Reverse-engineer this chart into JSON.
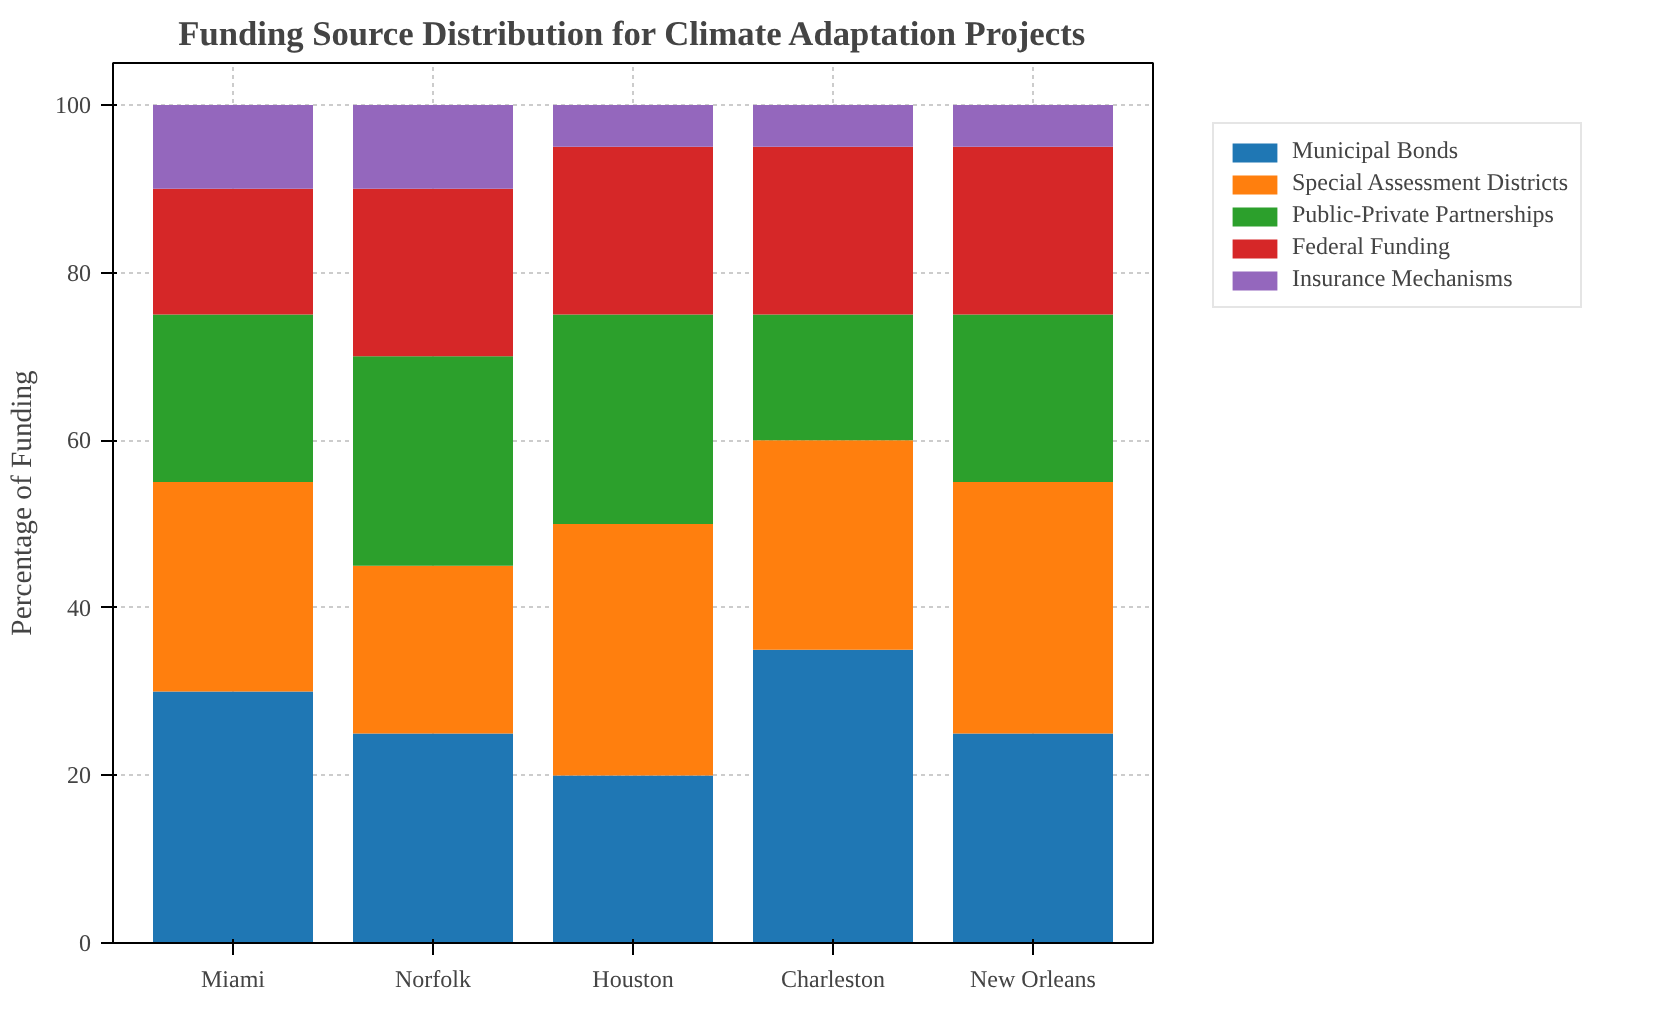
{
  "chart_data": {
    "type": "bar",
    "stacked": true,
    "title": "Funding Source Distribution for Climate Adaptation Projects",
    "ylabel": "Percentage of Funding",
    "categories": [
      "Miami",
      "Norfolk",
      "Houston",
      "Charleston",
      "New Orleans"
    ],
    "series": [
      {
        "name": "Municipal Bonds",
        "color": "#1f77b4",
        "values": [
          30,
          25,
          20,
          35,
          25
        ]
      },
      {
        "name": "Special Assessment Districts",
        "color": "#ff7f0e",
        "values": [
          25,
          20,
          30,
          25,
          30
        ]
      },
      {
        "name": "Public-Private Partnerships",
        "color": "#2ca02c",
        "values": [
          20,
          25,
          25,
          15,
          20
        ]
      },
      {
        "name": "Federal Funding",
        "color": "#d62728",
        "values": [
          15,
          20,
          20,
          20,
          20
        ]
      },
      {
        "name": "Insurance Mechanisms",
        "color": "#9467bd",
        "values": [
          10,
          10,
          5,
          5,
          5
        ]
      }
    ],
    "ylim": [
      0,
      105
    ],
    "yticks": [
      0,
      20,
      40,
      60,
      80,
      100
    ],
    "grid": true,
    "legend": "top right"
  }
}
